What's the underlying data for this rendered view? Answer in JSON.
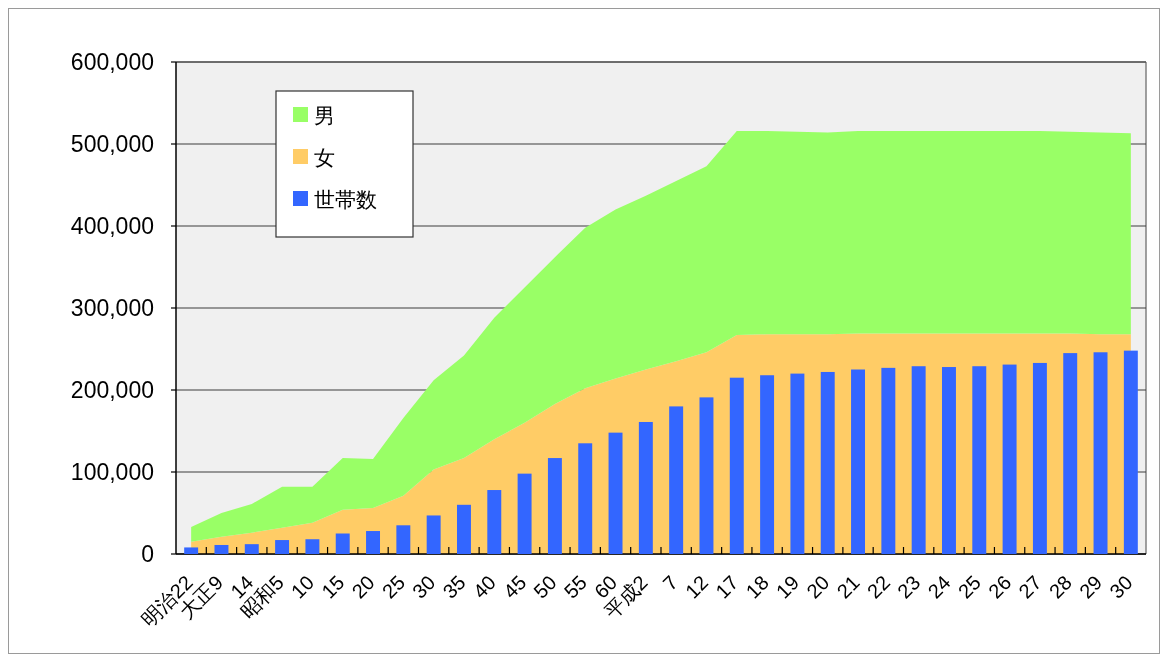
{
  "chart_data": [
    {
      "type": "area",
      "categories": [
        "明治22",
        "大正9",
        "14",
        "昭和5",
        "10",
        "15",
        "20",
        "25",
        "30",
        "35",
        "40",
        "45",
        "50",
        "55",
        "60",
        "平成2",
        "7",
        "12",
        "17",
        "18",
        "19",
        "20",
        "21",
        "22",
        "23",
        "24",
        "25",
        "26",
        "27",
        "28",
        "29",
        "30"
      ],
      "series": [
        {
          "name": "女",
          "color": "#ffcc66",
          "values": [
            15000,
            21000,
            26000,
            32000,
            38000,
            54000,
            56000,
            71000,
            103000,
            117000,
            140000,
            160000,
            183000,
            202000,
            214000,
            225000,
            235000,
            246000,
            267000,
            268000,
            268000,
            268000,
            269000,
            269000,
            269000,
            269000,
            269000,
            269000,
            269000,
            269000,
            268000,
            268000
          ]
        },
        {
          "name": "男",
          "color": "#99ff66",
          "values": [
            18000,
            29000,
            35000,
            50000,
            44000,
            63000,
            60000,
            95000,
            109000,
            125000,
            148000,
            165000,
            179000,
            196000,
            206000,
            212000,
            220000,
            227000,
            249000,
            248000,
            247000,
            246000,
            247000,
            247000,
            247000,
            247000,
            247000,
            247000,
            247000,
            246000,
            246000,
            245000
          ]
        }
      ],
      "stacked": true,
      "ylim": [
        0,
        600000
      ],
      "yticks": [
        0,
        {
          "value": 100000,
          "label": "100,000"
        },
        {
          "value": 200000,
          "label": "200,000"
        },
        {
          "value": 300000,
          "label": "300,000"
        },
        {
          "value": 400000,
          "label": "400,000"
        },
        {
          "value": 500000,
          "label": "500,000"
        },
        {
          "value": 600000,
          "label": "600,000"
        }
      ],
      "grid": "y",
      "legend": "top left"
    },
    {
      "type": "bar",
      "categories": [
        null,
        null,
        null,
        null,
        null,
        null,
        null,
        null,
        null,
        null,
        null,
        null,
        null,
        null,
        null,
        null,
        null,
        null,
        null,
        null,
        null,
        null,
        null,
        null,
        null,
        null,
        null,
        null,
        null,
        null,
        null,
        null
      ],
      "series": [
        {
          "name": "世帯数",
          "color": "#3366ff",
          "values": [
            8000,
            11000,
            12000,
            17000,
            18000,
            25000,
            28000,
            35000,
            47000,
            60000,
            78000,
            98000,
            117000,
            135000,
            148000,
            161000,
            180000,
            191000,
            215000,
            218000,
            220000,
            222000,
            225000,
            227000,
            229000,
            228000,
            229000,
            231000,
            233000,
            245000,
            246000,
            248000
          ]
        }
      ],
      "ylim": [
        0,
        600000
      ],
      "tick_labels": false,
      "legend": "top left"
    }
  ]
}
